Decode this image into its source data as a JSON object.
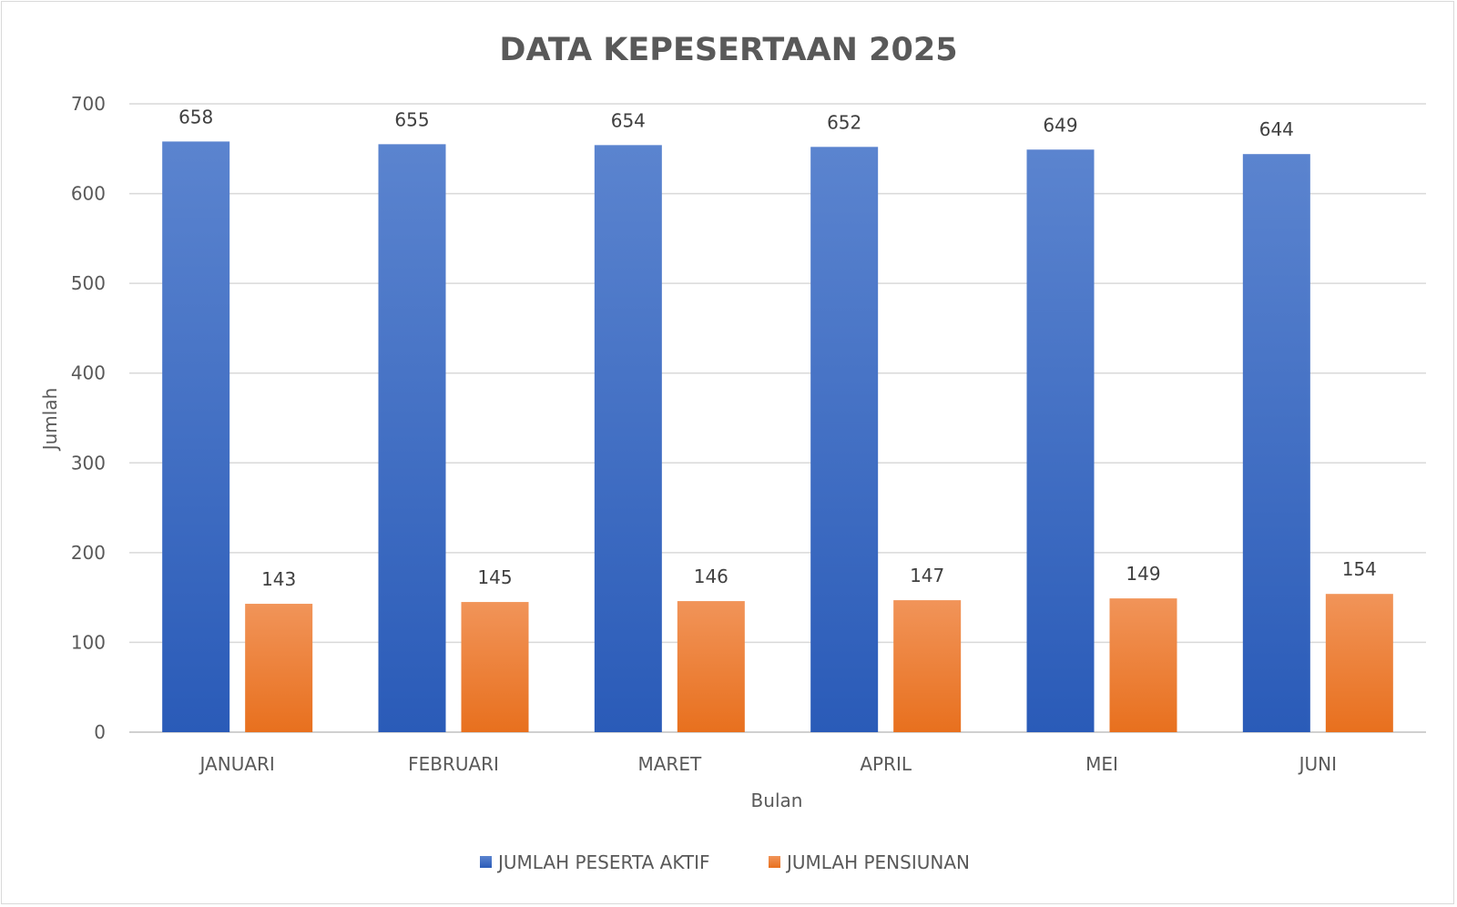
{
  "chart_data": {
    "type": "bar",
    "title": "DATA KEPESERTAAN 2025",
    "xlabel": "Bulan",
    "ylabel": "Jumlah",
    "categories": [
      "JANUARI",
      "FEBRUARI",
      "MARET",
      "APRIL",
      "MEI",
      "JUNI"
    ],
    "series": [
      {
        "name": "JUMLAH PESERTA AKTIF",
        "values": [
          658,
          655,
          654,
          652,
          649,
          644
        ],
        "color": "#4472c4"
      },
      {
        "name": "JUMLAH PENSIUNAN",
        "values": [
          143,
          145,
          146,
          147,
          149,
          154
        ],
        "color": "#ed7d31"
      }
    ],
    "ylim": [
      0,
      700
    ],
    "yticks": [
      0,
      100,
      200,
      300,
      400,
      500,
      600,
      700
    ],
    "grid": true,
    "legend": "bottom"
  }
}
